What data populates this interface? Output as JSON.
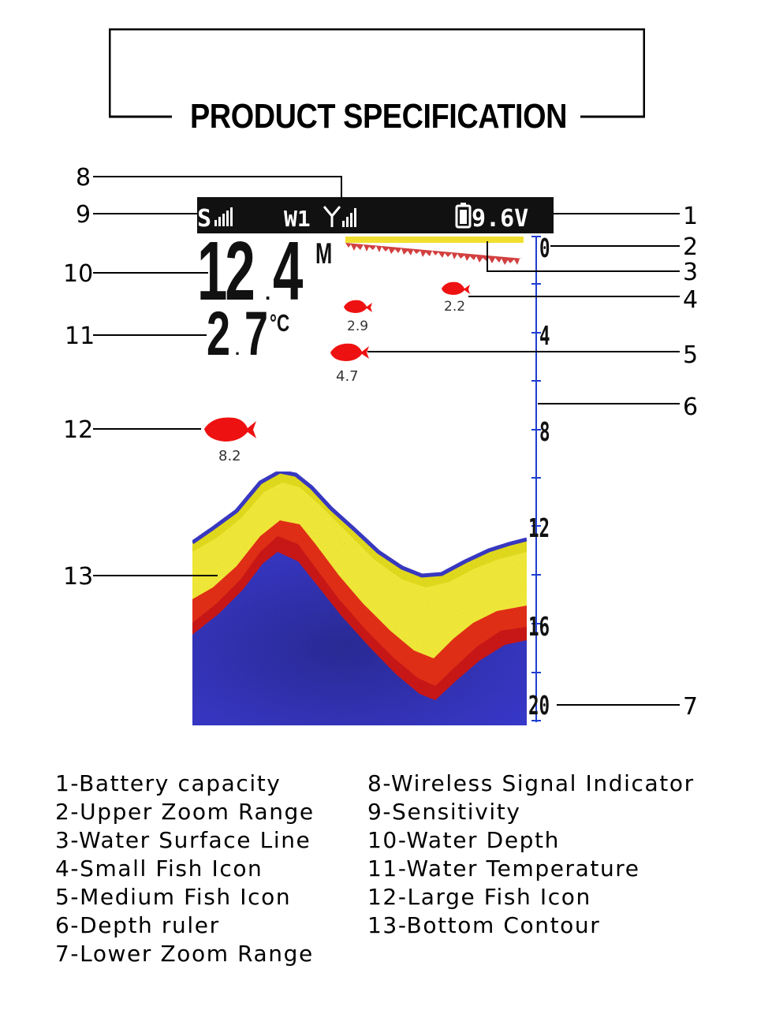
{
  "title": "PRODUCT SPECIFICATION",
  "screen": {
    "sensitivity_label": "S",
    "wireless_channel": "W1",
    "battery_voltage": "9.6V",
    "depth_value_int": "12",
    "depth_value_dec": "4",
    "depth_unit": "M",
    "temperature_int": "2",
    "temperature_dec": "7",
    "temperature_unit": "°C",
    "ruler_labels": [
      "0",
      "4",
      "8",
      "12",
      "16",
      "20"
    ],
    "fish": [
      {
        "label": "2.2",
        "size": "small"
      },
      {
        "label": "2.9",
        "size": "small"
      },
      {
        "label": "4.7",
        "size": "medium"
      },
      {
        "label": "8.2",
        "size": "large"
      }
    ],
    "colors": {
      "bar": "#111111",
      "ruler": "#1f3fd0",
      "fish": "#ee1111",
      "water": "#3a3ac8",
      "bottom": "#f0e020"
    }
  },
  "callouts": [
    "1",
    "2",
    "3",
    "4",
    "5",
    "6",
    "7",
    "8",
    "9",
    "10",
    "11",
    "12",
    "13"
  ],
  "legend_left": [
    "1-Battery capacity",
    "2-Upper Zoom Range",
    "3-Water Surface Line",
    "4-Small Fish Icon",
    "5-Medium Fish Icon",
    "6-Depth ruler",
    "7-Lower Zoom Range"
  ],
  "legend_right": [
    "8-Wireless Signal Indicator",
    "9-Sensitivity",
    "10-Water Depth",
    "11-Water Temperature",
    "12-Large Fish Icon",
    "13-Bottom Contour"
  ]
}
